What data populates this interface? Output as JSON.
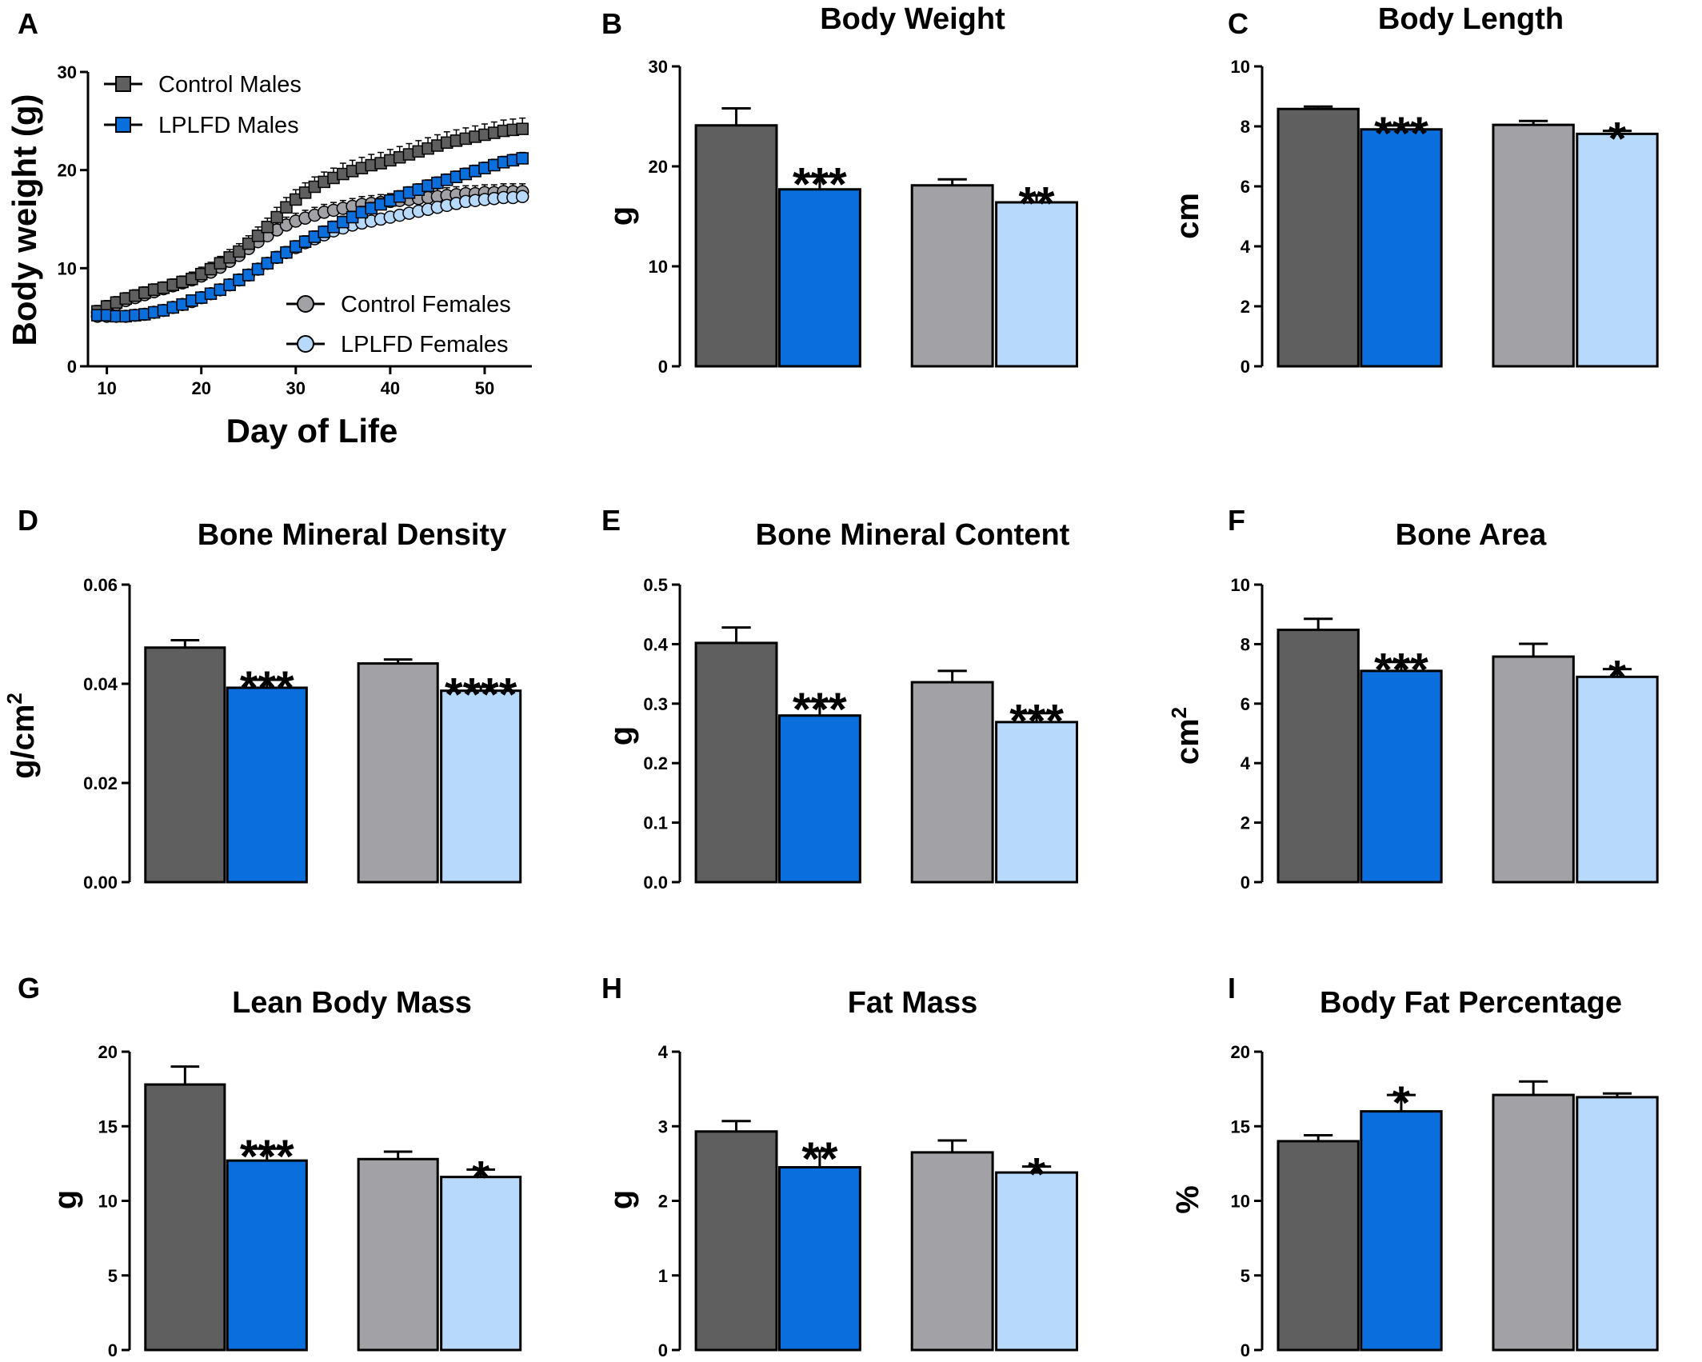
{
  "colors": {
    "control_males": "#5f5f5f",
    "lplfd_males": "#0a6fdc",
    "control_females": "#a2a2a6",
    "lplfd_females": "#b7d9fb",
    "axis": "#000000"
  },
  "chart_data": [
    {
      "panel": "A",
      "type": "line",
      "title": "",
      "xlabel": "Day of Life",
      "ylabel": "Body weight (g)",
      "xlim": [
        8,
        55
      ],
      "ylim": [
        0,
        30
      ],
      "xticks": [
        10,
        20,
        30,
        40,
        50
      ],
      "yticks": [
        0,
        10,
        20,
        30
      ],
      "legend_position": "top-left and bottom-right",
      "x": [
        9,
        10,
        11,
        12,
        13,
        14,
        15,
        16,
        17,
        18,
        19,
        20,
        21,
        22,
        23,
        24,
        25,
        26,
        27,
        28,
        29,
        30,
        31,
        32,
        33,
        34,
        35,
        36,
        37,
        38,
        39,
        40,
        41,
        42,
        43,
        44,
        45,
        46,
        47,
        48,
        49,
        50,
        51,
        52,
        53,
        54
      ],
      "series": [
        {
          "name": "Control Males",
          "marker": "square",
          "color": "#5f5f5f",
          "values": [
            5.6,
            6.1,
            6.5,
            6.9,
            7.2,
            7.5,
            7.8,
            8.0,
            8.3,
            8.6,
            8.9,
            9.4,
            9.9,
            10.5,
            11.1,
            11.7,
            12.5,
            13.3,
            14.2,
            15.2,
            16.2,
            17.0,
            17.7,
            18.3,
            18.8,
            19.2,
            19.6,
            19.9,
            20.2,
            20.5,
            20.7,
            21.0,
            21.3,
            21.6,
            21.9,
            22.2,
            22.5,
            22.8,
            23.0,
            23.2,
            23.4,
            23.6,
            23.8,
            24.0,
            24.1,
            24.2
          ],
          "errors": [
            0.6,
            0.6,
            0.6,
            0.6,
            0.6,
            0.6,
            0.6,
            0.6,
            0.6,
            0.6,
            0.7,
            0.7,
            0.7,
            0.7,
            0.8,
            0.8,
            0.8,
            0.9,
            0.9,
            1.0,
            1.0,
            1.0,
            1.0,
            1.0,
            1.0,
            1.0,
            1.1,
            1.1,
            1.1,
            1.1,
            1.1,
            1.1,
            1.1,
            1.1,
            1.1,
            1.1,
            1.1,
            1.1,
            1.1,
            1.1,
            1.1,
            1.1,
            1.1,
            1.1,
            1.1,
            1.1
          ]
        },
        {
          "name": "LPLFD Males",
          "marker": "square",
          "color": "#0a6fdc",
          "values": [
            5.2,
            5.2,
            5.1,
            5.1,
            5.2,
            5.3,
            5.5,
            5.7,
            6.0,
            6.3,
            6.7,
            7.0,
            7.4,
            7.8,
            8.3,
            8.8,
            9.3,
            9.9,
            10.5,
            11.1,
            11.6,
            12.2,
            12.7,
            13.2,
            13.7,
            14.2,
            14.7,
            15.2,
            15.7,
            16.1,
            16.5,
            16.9,
            17.3,
            17.7,
            18.0,
            18.4,
            18.7,
            19.0,
            19.3,
            19.6,
            19.9,
            20.2,
            20.5,
            20.8,
            21.0,
            21.2
          ],
          "errors": [
            0.4,
            0.4,
            0.4,
            0.4,
            0.4,
            0.4,
            0.4,
            0.4,
            0.4,
            0.4,
            0.4,
            0.4,
            0.5,
            0.5,
            0.5,
            0.5,
            0.5,
            0.5,
            0.5,
            0.6,
            0.6,
            0.6,
            0.6,
            0.6,
            0.6,
            0.6,
            0.6,
            0.6,
            0.6,
            0.6,
            0.6,
            0.6,
            0.6,
            0.6,
            0.6,
            0.6,
            0.6,
            0.6,
            0.6,
            0.6,
            0.6,
            0.6,
            0.6,
            0.6,
            0.6,
            0.6
          ]
        },
        {
          "name": "Control Females",
          "marker": "circle",
          "color": "#a2a2a6",
          "values": [
            5.5,
            5.9,
            6.3,
            6.7,
            7.0,
            7.3,
            7.6,
            7.9,
            8.2,
            8.5,
            8.8,
            9.2,
            9.6,
            10.1,
            10.7,
            11.3,
            12.0,
            12.7,
            13.3,
            13.9,
            14.4,
            14.8,
            15.1,
            15.4,
            15.7,
            15.9,
            16.1,
            16.3,
            16.5,
            16.6,
            16.7,
            16.8,
            16.9,
            17.0,
            17.1,
            17.2,
            17.3,
            17.4,
            17.5,
            17.6,
            17.6,
            17.7,
            17.7,
            17.8,
            17.8,
            17.8
          ],
          "errors": [
            0.5,
            0.5,
            0.5,
            0.5,
            0.5,
            0.5,
            0.5,
            0.5,
            0.5,
            0.5,
            0.5,
            0.5,
            0.6,
            0.6,
            0.6,
            0.6,
            0.7,
            0.7,
            0.7,
            0.8,
            0.8,
            0.8,
            0.8,
            0.8,
            0.8,
            0.8,
            0.8,
            0.8,
            0.8,
            0.8,
            0.8,
            0.8,
            0.8,
            0.8,
            0.8,
            0.8,
            0.8,
            0.8,
            0.8,
            0.8,
            0.8,
            0.8,
            0.8,
            0.8,
            0.8,
            0.8
          ]
        },
        {
          "name": "LPLFD Females",
          "marker": "circle",
          "color": "#b7d9fb",
          "values": [
            5.1,
            5.1,
            5.1,
            5.1,
            5.2,
            5.3,
            5.5,
            5.7,
            6.0,
            6.3,
            6.6,
            7.0,
            7.4,
            7.8,
            8.3,
            8.8,
            9.3,
            9.9,
            10.5,
            11.1,
            11.6,
            12.1,
            12.6,
            13.0,
            13.4,
            13.8,
            14.1,
            14.4,
            14.6,
            14.8,
            15.0,
            15.2,
            15.4,
            15.6,
            15.8,
            16.0,
            16.2,
            16.4,
            16.6,
            16.8,
            16.9,
            17.0,
            17.1,
            17.2,
            17.2,
            17.3
          ],
          "errors": [
            0.3,
            0.3,
            0.3,
            0.3,
            0.3,
            0.3,
            0.3,
            0.3,
            0.3,
            0.3,
            0.3,
            0.3,
            0.3,
            0.3,
            0.4,
            0.4,
            0.4,
            0.4,
            0.4,
            0.4,
            0.4,
            0.4,
            0.4,
            0.4,
            0.4,
            0.4,
            0.4,
            0.4,
            0.4,
            0.4,
            0.4,
            0.4,
            0.4,
            0.4,
            0.4,
            0.4,
            0.4,
            0.4,
            0.4,
            0.4,
            0.4,
            0.4,
            0.4,
            0.4,
            0.4,
            0.4
          ]
        }
      ]
    },
    {
      "panel": "B",
      "type": "bar",
      "title": "Body Weight",
      "ylabel": "g",
      "ylim": [
        0,
        30
      ],
      "yticks": [
        "0",
        "10",
        "20",
        "30"
      ],
      "series": [
        {
          "name": "Control Males",
          "color": "#5f5f5f",
          "value": 24.1,
          "error": 1.7,
          "sig": ""
        },
        {
          "name": "LPLFD Males",
          "color": "#0a6fdc",
          "value": 17.7,
          "error": 1.3,
          "sig": "***"
        },
        {
          "name": "Control Females",
          "color": "#a2a2a6",
          "value": 18.1,
          "error": 0.6,
          "sig": ""
        },
        {
          "name": "LPLFD Females",
          "color": "#b7d9fb",
          "value": 16.4,
          "error": 0.7,
          "sig": "**"
        }
      ]
    },
    {
      "panel": "C",
      "type": "bar",
      "title": "Body Length",
      "ylabel": "cm",
      "ylim": [
        0,
        10
      ],
      "yticks": [
        "0",
        "2",
        "4",
        "6",
        "8",
        "10"
      ],
      "series": [
        {
          "name": "Control Males",
          "color": "#5f5f5f",
          "value": 8.58,
          "error": 0.08,
          "sig": ""
        },
        {
          "name": "LPLFD Males",
          "color": "#0a6fdc",
          "value": 7.9,
          "error": 0.13,
          "sig": "***"
        },
        {
          "name": "Control Females",
          "color": "#a2a2a6",
          "value": 8.05,
          "error": 0.13,
          "sig": ""
        },
        {
          "name": "LPLFD Females",
          "color": "#b7d9fb",
          "value": 7.75,
          "error": 0.1,
          "sig": "*"
        }
      ]
    },
    {
      "panel": "D",
      "type": "bar",
      "title": "Bone Mineral Density",
      "ylabel": "g/cm",
      "ylabel_superscript": "2",
      "ylim": [
        0,
        0.06
      ],
      "yticks": [
        "0.00",
        "0.02",
        "0.04",
        "0.06"
      ],
      "series": [
        {
          "name": "Control Males",
          "color": "#5f5f5f",
          "value": 0.0473,
          "error": 0.0015,
          "sig": ""
        },
        {
          "name": "LPLFD Males",
          "color": "#0a6fdc",
          "value": 0.0392,
          "error": 0.0016,
          "sig": "***"
        },
        {
          "name": "Control Females",
          "color": "#a2a2a6",
          "value": 0.0441,
          "error": 0.0008,
          "sig": ""
        },
        {
          "name": "LPLFD Females",
          "color": "#b7d9fb",
          "value": 0.0386,
          "error": 0.0008,
          "sig": "****"
        }
      ]
    },
    {
      "panel": "E",
      "type": "bar",
      "title": "Bone Mineral Content",
      "ylabel": "g",
      "ylim": [
        0,
        0.5
      ],
      "yticks": [
        "0.0",
        "0.1",
        "0.2",
        "0.3",
        "0.4",
        "0.5"
      ],
      "series": [
        {
          "name": "Control Males",
          "color": "#5f5f5f",
          "value": 0.402,
          "error": 0.026,
          "sig": ""
        },
        {
          "name": "LPLFD Males",
          "color": "#0a6fdc",
          "value": 0.28,
          "error": 0.024,
          "sig": "***"
        },
        {
          "name": "Control Females",
          "color": "#a2a2a6",
          "value": 0.336,
          "error": 0.019,
          "sig": ""
        },
        {
          "name": "LPLFD Females",
          "color": "#b7d9fb",
          "value": 0.269,
          "error": 0.015,
          "sig": "***"
        }
      ]
    },
    {
      "panel": "F",
      "type": "bar",
      "title": "Bone Area",
      "ylabel": "cm",
      "ylabel_superscript": "2",
      "ylim": [
        0,
        10
      ],
      "yticks": [
        "0",
        "2",
        "4",
        "6",
        "8",
        "10"
      ],
      "series": [
        {
          "name": "Control Males",
          "color": "#5f5f5f",
          "value": 8.48,
          "error": 0.37,
          "sig": ""
        },
        {
          "name": "LPLFD Males",
          "color": "#0a6fdc",
          "value": 7.1,
          "error": 0.3,
          "sig": "***"
        },
        {
          "name": "Control Females",
          "color": "#a2a2a6",
          "value": 7.58,
          "error": 0.43,
          "sig": ""
        },
        {
          "name": "LPLFD Females",
          "color": "#b7d9fb",
          "value": 6.9,
          "error": 0.26,
          "sig": "*"
        }
      ]
    },
    {
      "panel": "G",
      "type": "bar",
      "title": "Lean Body Mass",
      "ylabel": "g",
      "ylim": [
        0,
        20
      ],
      "yticks": [
        "0",
        "5",
        "10",
        "15",
        "20"
      ],
      "series": [
        {
          "name": "Control Males",
          "color": "#5f5f5f",
          "value": 17.8,
          "error": 1.2,
          "sig": ""
        },
        {
          "name": "LPLFD Males",
          "color": "#0a6fdc",
          "value": 12.7,
          "error": 0.8,
          "sig": "***"
        },
        {
          "name": "Control Females",
          "color": "#a2a2a6",
          "value": 12.8,
          "error": 0.5,
          "sig": ""
        },
        {
          "name": "LPLFD Females",
          "color": "#b7d9fb",
          "value": 11.6,
          "error": 0.5,
          "sig": "*"
        }
      ]
    },
    {
      "panel": "H",
      "type": "bar",
      "title": "Fat Mass",
      "ylabel": "g",
      "ylim": [
        0,
        4
      ],
      "yticks": [
        "0",
        "1",
        "2",
        "3",
        "4"
      ],
      "series": [
        {
          "name": "Control Males",
          "color": "#5f5f5f",
          "value": 2.93,
          "error": 0.14,
          "sig": ""
        },
        {
          "name": "LPLFD Males",
          "color": "#0a6fdc",
          "value": 2.45,
          "error": 0.22,
          "sig": "**"
        },
        {
          "name": "Control Females",
          "color": "#a2a2a6",
          "value": 2.65,
          "error": 0.16,
          "sig": ""
        },
        {
          "name": "LPLFD Females",
          "color": "#b7d9fb",
          "value": 2.38,
          "error": 0.08,
          "sig": "*"
        }
      ]
    },
    {
      "panel": "I",
      "type": "bar",
      "title": "Body Fat Percentage",
      "ylabel": "%",
      "ylim": [
        0,
        20
      ],
      "yticks": [
        "0",
        "5",
        "10",
        "15",
        "20"
      ],
      "series": [
        {
          "name": "Control Males",
          "color": "#5f5f5f",
          "value": 14.0,
          "error": 0.4,
          "sig": ""
        },
        {
          "name": "LPLFD Males",
          "color": "#0a6fdc",
          "value": 16.0,
          "error": 1.1,
          "sig": "*"
        },
        {
          "name": "Control Females",
          "color": "#a2a2a6",
          "value": 17.1,
          "error": 0.9,
          "sig": ""
        },
        {
          "name": "LPLFD Females",
          "color": "#b7d9fb",
          "value": 16.95,
          "error": 0.25,
          "sig": ""
        }
      ]
    }
  ]
}
